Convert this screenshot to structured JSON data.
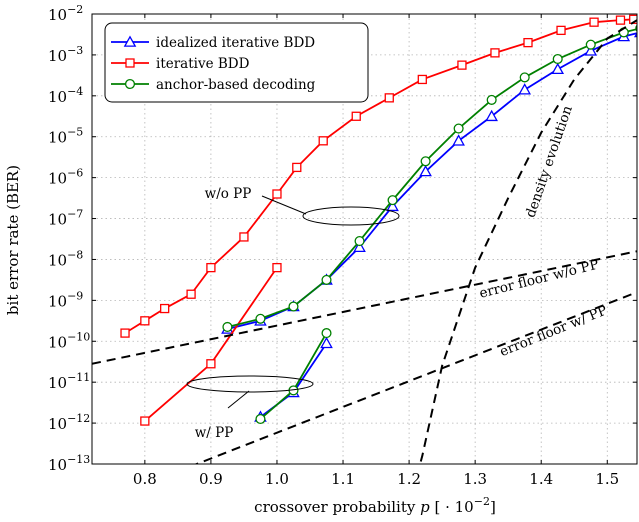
{
  "chart_data": {
    "type": "line",
    "xlabel": "crossover probability p [ · 10−2]",
    "ylabel": "bit error rate (BER)",
    "xlim": [
      0.72,
      1.545
    ],
    "ylim_log10": [
      -13,
      -2
    ],
    "yscale": "log",
    "grid": true,
    "legend_position": "top-left",
    "x_ticks": [
      {
        "value": 0.8,
        "label": "0.8"
      },
      {
        "value": 0.9,
        "label": "0.9"
      },
      {
        "value": 1.0,
        "label": "1.0"
      },
      {
        "value": 1.1,
        "label": "1.1"
      },
      {
        "value": 1.2,
        "label": "1.2"
      },
      {
        "value": 1.3,
        "label": "1.3"
      },
      {
        "value": 1.4,
        "label": "1.4"
      },
      {
        "value": 1.5,
        "label": "1.5"
      }
    ],
    "y_ticks": [
      {
        "exp": -13,
        "base": "10",
        "sup": "−13"
      },
      {
        "exp": -12,
        "base": "10",
        "sup": "−12"
      },
      {
        "exp": -11,
        "base": "10",
        "sup": "−11"
      },
      {
        "exp": -10,
        "base": "10",
        "sup": "−10"
      },
      {
        "exp": -9,
        "base": "10",
        "sup": "−9"
      },
      {
        "exp": -8,
        "base": "10",
        "sup": "−8"
      },
      {
        "exp": -7,
        "base": "10",
        "sup": "−7"
      },
      {
        "exp": -6,
        "base": "10",
        "sup": "−6"
      },
      {
        "exp": -5,
        "base": "10",
        "sup": "−5"
      },
      {
        "exp": -4,
        "base": "10",
        "sup": "−4"
      },
      {
        "exp": -3,
        "base": "10",
        "sup": "−3"
      },
      {
        "exp": -2,
        "base": "10",
        "sup": "−2"
      }
    ],
    "series": [
      {
        "name": "idealized iterative BDD",
        "color": "#0000ff",
        "marker": "triangle",
        "segments": [
          {
            "x": [
              0.925,
              0.975,
              1.025,
              1.075,
              1.125,
              1.175,
              1.225,
              1.275,
              1.325,
              1.375,
              1.425,
              1.475,
              1.525,
              1.55
            ],
            "log10_y": [
              -9.7,
              -9.5,
              -9.15,
              -8.5,
              -7.7,
              -6.7,
              -5.85,
              -5.1,
              -4.5,
              -3.85,
              -3.35,
              -2.9,
              -2.55,
              -2.45
            ]
          },
          {
            "x": [
              0.975,
              1.025,
              1.075
            ],
            "log10_y": [
              -11.85,
              -11.25,
              -10.05
            ]
          }
        ]
      },
      {
        "name": "iterative BDD",
        "color": "#ff0000",
        "marker": "square",
        "segments": [
          {
            "x": [
              0.77,
              0.8,
              0.83,
              0.87,
              0.9,
              0.95,
              1.0,
              1.03,
              1.07,
              1.12,
              1.17,
              1.22,
              1.28,
              1.33,
              1.38,
              1.43,
              1.48,
              1.52,
              1.54
            ],
            "log10_y": [
              -9.8,
              -9.5,
              -9.2,
              -8.85,
              -8.2,
              -7.45,
              -6.4,
              -5.75,
              -5.1,
              -4.5,
              -4.05,
              -3.6,
              -3.25,
              -2.95,
              -2.7,
              -2.4,
              -2.2,
              -2.15,
              -2.13
            ]
          },
          {
            "x": [
              0.8,
              0.9,
              1.0
            ],
            "log10_y": [
              -11.95,
              -10.55,
              -8.2
            ]
          }
        ]
      },
      {
        "name": "anchor-based decoding",
        "color": "#008000",
        "marker": "circle",
        "segments": [
          {
            "x": [
              0.925,
              0.975,
              1.025,
              1.075,
              1.125,
              1.175,
              1.225,
              1.275,
              1.325,
              1.375,
              1.425,
              1.475,
              1.525,
              1.55
            ],
            "log10_y": [
              -9.65,
              -9.45,
              -9.15,
              -8.5,
              -7.55,
              -6.55,
              -5.6,
              -4.8,
              -4.1,
              -3.55,
              -3.1,
              -2.75,
              -2.45,
              -2.35
            ]
          },
          {
            "x": [
              0.975,
              1.025,
              1.075
            ],
            "log10_y": [
              -11.9,
              -11.2,
              -9.8
            ]
          }
        ]
      },
      {
        "name": "density evolution",
        "color": "#000000",
        "dashed": true,
        "segments": [
          {
            "x": [
              1.2,
              1.22,
              1.25,
              1.3,
              1.35,
              1.4,
              1.45,
              1.5,
              1.55
            ],
            "log10_y": [
              -14,
              -12.8,
              -10.6,
              -8.2,
              -6.5,
              -4.9,
              -3.6,
              -2.6,
              -2.1
            ]
          }
        ]
      },
      {
        "name": "error floor w/o PP",
        "color": "#000000",
        "dashed": true,
        "segments": [
          {
            "x": [
              0.72,
              1.545
            ],
            "log10_y": [
              -10.55,
              -7.8
            ]
          }
        ]
      },
      {
        "name": "error floor w/ PP",
        "color": "#000000",
        "dashed": true,
        "segments": [
          {
            "x": [
              0.72,
              1.545
            ],
            "log10_y": [
              -14.0,
              -8.8
            ]
          }
        ]
      }
    ],
    "legend": [
      {
        "label": "idealized iterative BDD",
        "color": "#0000ff",
        "marker": "triangle"
      },
      {
        "label": "iterative BDD",
        "color": "#ff0000",
        "marker": "square"
      },
      {
        "label": "anchor-based decoding",
        "color": "#008000",
        "marker": "circle"
      }
    ],
    "annotations": [
      {
        "text": "w/o PP"
      },
      {
        "text": "w/ PP"
      },
      {
        "text": "density evolution"
      },
      {
        "text": "error floor w/o PP"
      },
      {
        "text": "error floor w/ PP"
      }
    ]
  }
}
